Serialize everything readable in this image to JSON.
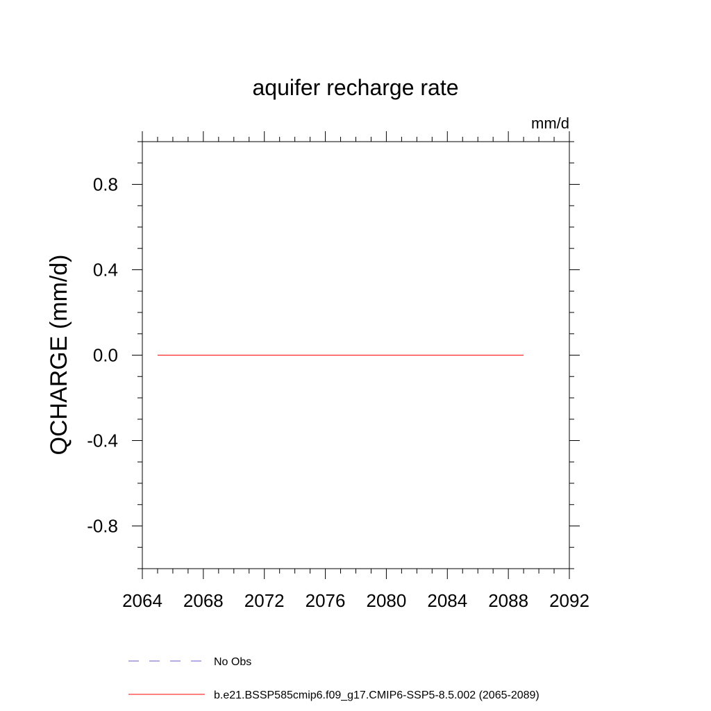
{
  "chart_data": {
    "type": "line",
    "title": "aquifer recharge rate",
    "units": "mm/d",
    "xlabel": "",
    "ylabel": "QCHARGE  (mm/d)",
    "xlim": [
      2064,
      2092
    ],
    "ylim": [
      -1.0,
      1.0
    ],
    "x_ticks": [
      2064,
      2068,
      2072,
      2076,
      2080,
      2084,
      2088,
      2092
    ],
    "x_tick_labels": [
      "2064",
      "2068",
      "2072",
      "2076",
      "2080",
      "2084",
      "2088",
      "2092"
    ],
    "y_ticks": [
      -0.8,
      -0.4,
      0.0,
      0.4,
      0.8
    ],
    "y_tick_labels": [
      "-0.8",
      "-0.4",
      "0.0",
      "0.4",
      "0.8"
    ],
    "grid": false,
    "legend_position": "bottom",
    "series": [
      {
        "name": "b.e21.BSSP585cmip6.f09_g17.CMIP6-SSP5-8.5.002 (2065-2089)",
        "color": "#ff0000",
        "dash": "solid",
        "x": [
          2065,
          2066,
          2067,
          2068,
          2069,
          2070,
          2071,
          2072,
          2073,
          2074,
          2075,
          2076,
          2077,
          2078,
          2079,
          2080,
          2081,
          2082,
          2083,
          2084,
          2085,
          2086,
          2087,
          2088,
          2089
        ],
        "y": [
          0,
          0,
          0,
          0,
          0,
          0,
          0,
          0,
          0,
          0,
          0,
          0,
          0,
          0,
          0,
          0,
          0,
          0,
          0,
          0,
          0,
          0,
          0,
          0,
          0
        ]
      }
    ],
    "legend": [
      {
        "label": "No Obs",
        "color": "#6a5acd",
        "dash": "dashed"
      },
      {
        "label": "b.e21.BSSP585cmip6.f09_g17.CMIP6-SSP5-8.5.002 (2065-2089)",
        "color": "#ff0000",
        "dash": "solid"
      }
    ]
  }
}
